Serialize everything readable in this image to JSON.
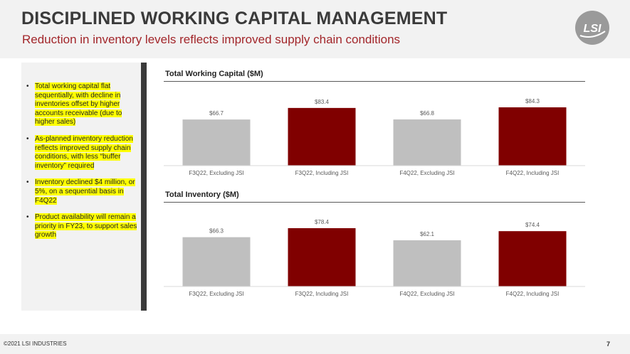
{
  "header": {
    "title": "DISCIPLINED WORKING CAPITAL MANAGEMENT",
    "subtitle": "Reduction in inventory levels reflects improved supply chain conditions"
  },
  "logo": {
    "icon": "lsi-logo-icon",
    "text": "LSI"
  },
  "bullets": [
    "Total working capital flat sequentially, with decline in inventories offset by higher accounts receivable (due to higher sales)",
    "As-planned inventory reduction reflects improved supply chain conditions, with less “buffer inventory” required",
    "Inventory declined $4 million, or 5%, on a sequential basis in F4Q22",
    "Product availability will remain a priority in FY23, to support sales growth"
  ],
  "colors": {
    "excluding": "#bfbfbf",
    "including": "#800000",
    "subtitle": "#a2262a",
    "highlight": "#ffff00"
  },
  "chart_data": [
    {
      "type": "bar",
      "title": "Total Working Capital ($M)",
      "categories": [
        "F3Q22, Excluding JSI",
        "F3Q22, Including JSI",
        "F4Q22, Excluding JSI",
        "F4Q22, Including JSI"
      ],
      "values": [
        66.7,
        83.4,
        66.8,
        84.3
      ],
      "value_labels": [
        "$66.7",
        "$83.4",
        "$66.8",
        "$84.3"
      ],
      "bar_colors": [
        "#bfbfbf",
        "#800000",
        "#bfbfbf",
        "#800000"
      ],
      "ylim": [
        0,
        84.3
      ]
    },
    {
      "type": "bar",
      "title": "Total Inventory ($M)",
      "categories": [
        "F3Q22, Excluding JSI",
        "F3Q22, Including JSI",
        "F4Q22, Excluding JSI",
        "F4Q22, Including JSI"
      ],
      "values": [
        66.3,
        78.4,
        62.1,
        74.4
      ],
      "value_labels": [
        "$66.3",
        "$78.4",
        "$62.1",
        "$74.4"
      ],
      "bar_colors": [
        "#bfbfbf",
        "#800000",
        "#bfbfbf",
        "#800000"
      ],
      "ylim": [
        0,
        78.4
      ]
    }
  ],
  "footer": {
    "copyright": "©2021 LSI INDUSTRIES",
    "page_number": "7"
  }
}
